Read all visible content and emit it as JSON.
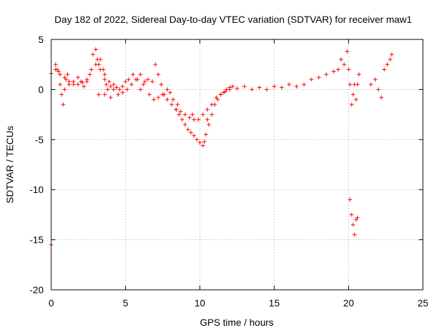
{
  "chart_data": {
    "type": "scatter",
    "title": "Day 182 of 2022, Sidereal Day-to-day VTEC variation (SDTVAR) for receiver maw1",
    "xlabel": "GPS time / hours",
    "ylabel": "SDTVAR / TECUs",
    "xlim": [
      0,
      25
    ],
    "ylim": [
      -20,
      5
    ],
    "xticks": [
      0,
      5,
      10,
      15,
      20,
      25
    ],
    "xtick_labels": [
      "0",
      "5",
      "10",
      "15",
      "20",
      "25"
    ],
    "yticks": [
      5,
      0,
      -5,
      -10,
      -15,
      -20
    ],
    "ytick_labels": [
      "5",
      "0",
      "-5",
      "-10",
      "-15",
      "-20"
    ],
    "grid": true,
    "marker": "+",
    "series": [
      {
        "name": "SDTVAR",
        "color": "#ff0000",
        "x": [
          0.0,
          0.0,
          0.3,
          0.4,
          0.5,
          0.6,
          0.7,
          0.8,
          0.9,
          1.0,
          1.1,
          1.2,
          1.5,
          1.8,
          2.0,
          2.2,
          2.4,
          2.6,
          2.8,
          3.0,
          3.1,
          3.2,
          3.3,
          3.5,
          3.6,
          3.7,
          3.8,
          4.0,
          4.2,
          4.4,
          4.6,
          4.8,
          5.0,
          5.2,
          5.5,
          5.8,
          6.0,
          6.2,
          6.5,
          6.8,
          7.0,
          7.2,
          7.4,
          7.6,
          7.8,
          8.0,
          8.2,
          8.4,
          8.6,
          8.8,
          9.0,
          9.2,
          9.4,
          9.6,
          9.8,
          10.0,
          10.2,
          10.3,
          10.4,
          10.6,
          10.8,
          11.0,
          11.2,
          11.4,
          11.6,
          11.8,
          12.0,
          12.2,
          12.5,
          13.0,
          13.5,
          14.0,
          14.5,
          15.0,
          15.5,
          16.0,
          16.5,
          17.0,
          17.5,
          18.0,
          18.5,
          19.0,
          19.3,
          19.5,
          19.7,
          19.9,
          20.0,
          20.1,
          20.2,
          20.3,
          20.4,
          20.5,
          20.6,
          20.7,
          20.1,
          20.2,
          20.3,
          20.4,
          20.5,
          20.6,
          21.5,
          21.8,
          22.0,
          22.2,
          22.4,
          22.6,
          22.8,
          22.9,
          0.3,
          0.6,
          0.9,
          1.2,
          1.5,
          1.8,
          2.1,
          2.4,
          2.7,
          3.0,
          3.3,
          3.6,
          3.9,
          4.2,
          4.5,
          4.8,
          5.1,
          5.4,
          5.7,
          6.0,
          6.3,
          6.6,
          6.9,
          7.2,
          7.5,
          7.8,
          8.1,
          8.4,
          8.7,
          9.0,
          9.3,
          9.6,
          9.9,
          10.2,
          10.5,
          10.8,
          11.1,
          11.4,
          11.7,
          12.0,
          3.2,
          3.6,
          4.0,
          7.5,
          8.5,
          9.5,
          10.5
        ],
        "y": [
          1.6,
          -15.5,
          2.5,
          2.0,
          1.8,
          0.5,
          -0.5,
          -1.5,
          0.0,
          1.0,
          1.5,
          0.8,
          0.5,
          1.2,
          0.8,
          0.3,
          0.8,
          1.5,
          3.5,
          4.0,
          3.0,
          2.5,
          3.0,
          2.0,
          1.0,
          0.5,
          0.0,
          0.3,
          0.5,
          0.2,
          0.0,
          0.3,
          0.8,
          1.0,
          1.5,
          1.0,
          0.0,
          0.5,
          1.0,
          0.8,
          2.5,
          1.5,
          0.5,
          -0.5,
          0.0,
          -0.3,
          -1.0,
          -2.0,
          -2.5,
          -3.0,
          -3.5,
          -4.0,
          -4.3,
          -4.6,
          -5.0,
          -5.3,
          -5.6,
          -5.2,
          -4.5,
          -3.5,
          -2.5,
          -1.5,
          -1.0,
          -0.5,
          -0.3,
          0.0,
          0.2,
          0.3,
          0.1,
          0.3,
          0.0,
          0.2,
          0.0,
          0.3,
          0.2,
          0.5,
          0.3,
          0.5,
          1.0,
          1.2,
          1.5,
          1.8,
          2.0,
          3.0,
          2.5,
          3.8,
          2.0,
          0.5,
          -1.5,
          -0.5,
          0.5,
          -1.0,
          0.5,
          1.5,
          -11.0,
          -12.5,
          -13.5,
          -14.5,
          -13.0,
          -12.8,
          0.5,
          1.0,
          0.0,
          -0.8,
          2.0,
          2.5,
          3.0,
          3.5,
          2.0,
          1.5,
          1.2,
          0.5,
          0.8,
          0.5,
          0.7,
          1.0,
          2.0,
          2.5,
          2.0,
          1.5,
          0.8,
          0.0,
          -0.5,
          -0.3,
          0.0,
          0.5,
          1.0,
          1.5,
          0.8,
          -0.5,
          -1.0,
          -0.8,
          -0.5,
          -1.0,
          -1.5,
          -2.0,
          -2.2,
          -2.5,
          -2.8,
          -3.0,
          -3.0,
          -2.5,
          -2.0,
          -1.5,
          -0.8,
          -0.5,
          -0.2,
          0.0,
          -0.5,
          -0.5,
          -0.8,
          -0.5,
          -1.5,
          -2.5,
          -3.0
        ]
      }
    ]
  }
}
